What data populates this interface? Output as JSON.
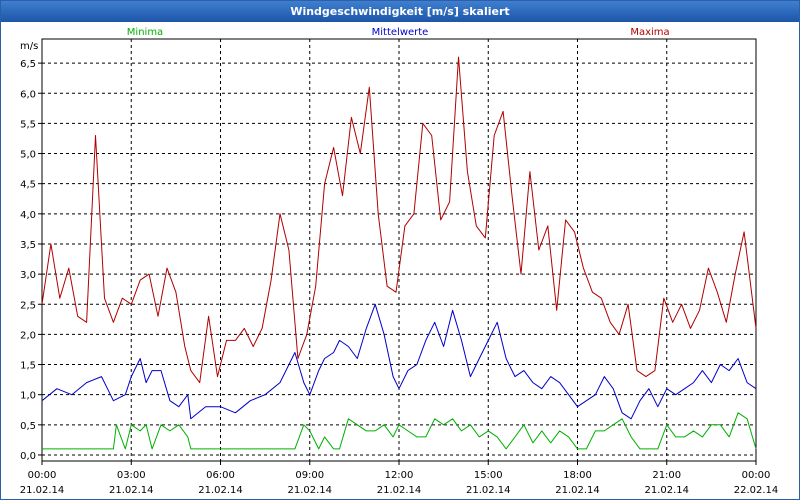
{
  "window": {
    "title": "Windgeschwindigkeit [m/s] skaliert"
  },
  "chart_data": {
    "type": "line",
    "title": "Windgeschwindigkeit [m/s] skaliert",
    "ylabel": "m/s",
    "ylim": [
      -0.1,
      6.9
    ],
    "yticks": [
      "0,0",
      "0,5",
      "1,0",
      "1,5",
      "2,0",
      "2,5",
      "3,0",
      "3,5",
      "4,0",
      "4,5",
      "5,0",
      "5,5",
      "6,0",
      "6,5"
    ],
    "xlim": [
      0,
      24
    ],
    "xticks": [
      {
        "time": "00:00",
        "date": "21.02.14"
      },
      {
        "time": "03:00",
        "date": "21.02.14"
      },
      {
        "time": "06:00",
        "date": "21.02.14"
      },
      {
        "time": "09:00",
        "date": "21.02.14"
      },
      {
        "time": "12:00",
        "date": "21.02.14"
      },
      {
        "time": "15:00",
        "date": "21.02.14"
      },
      {
        "time": "18:00",
        "date": "21.02.14"
      },
      {
        "time": "21:00",
        "date": "21.02.14"
      },
      {
        "time": "00:00",
        "date": "22.02.14"
      }
    ],
    "grid": true,
    "legend_position": "top",
    "series": [
      {
        "name": "Minima",
        "color": "#00b000",
        "x": [
          0,
          0.5,
          1,
          1.5,
          2,
          2.4,
          2.5,
          2.8,
          3,
          3.3,
          3.5,
          3.7,
          4,
          4.3,
          4.6,
          4.9,
          5,
          5.5,
          6,
          6.5,
          7,
          7.5,
          8,
          8.5,
          8.8,
          9,
          9.3,
          9.5,
          9.8,
          10,
          10.3,
          10.6,
          10.9,
          11.2,
          11.5,
          11.8,
          12,
          12.3,
          12.6,
          12.9,
          13.2,
          13.5,
          13.8,
          14.1,
          14.4,
          14.7,
          15,
          15.3,
          15.6,
          15.9,
          16.2,
          16.5,
          16.8,
          17.1,
          17.4,
          17.7,
          18,
          18.3,
          18.6,
          18.9,
          19.2,
          19.5,
          19.8,
          20.1,
          20.4,
          20.7,
          21,
          21.3,
          21.6,
          21.9,
          22.2,
          22.5,
          22.8,
          23.1,
          23.4,
          23.7,
          24
        ],
        "y": [
          0.1,
          0.1,
          0.1,
          0.1,
          0.1,
          0.1,
          0.5,
          0.1,
          0.5,
          0.4,
          0.5,
          0.1,
          0.5,
          0.4,
          0.5,
          0.3,
          0.1,
          0.1,
          0.1,
          0.1,
          0.1,
          0.1,
          0.1,
          0.1,
          0.5,
          0.4,
          0.1,
          0.3,
          0.1,
          0.1,
          0.6,
          0.5,
          0.4,
          0.4,
          0.5,
          0.3,
          0.5,
          0.4,
          0.3,
          0.3,
          0.6,
          0.5,
          0.6,
          0.4,
          0.5,
          0.3,
          0.4,
          0.3,
          0.1,
          0.3,
          0.5,
          0.2,
          0.4,
          0.2,
          0.4,
          0.3,
          0.1,
          0.1,
          0.4,
          0.4,
          0.5,
          0.6,
          0.3,
          0.1,
          0.1,
          0.1,
          0.5,
          0.3,
          0.3,
          0.4,
          0.3,
          0.5,
          0.5,
          0.3,
          0.7,
          0.6,
          0.1
        ]
      },
      {
        "name": "Mittelwerte",
        "color": "#0000cc",
        "x": [
          0,
          0.5,
          1,
          1.5,
          2,
          2.4,
          2.8,
          3,
          3.3,
          3.5,
          3.7,
          4,
          4.3,
          4.6,
          4.9,
          5,
          5.5,
          6,
          6.5,
          7,
          7.5,
          8,
          8.5,
          8.8,
          9,
          9.3,
          9.5,
          9.8,
          10,
          10.3,
          10.6,
          10.9,
          11.2,
          11.5,
          11.8,
          12,
          12.3,
          12.6,
          12.9,
          13.2,
          13.5,
          13.8,
          14.1,
          14.4,
          14.7,
          15,
          15.3,
          15.6,
          15.9,
          16.2,
          16.5,
          16.8,
          17.1,
          17.4,
          17.7,
          18,
          18.3,
          18.6,
          18.9,
          19.2,
          19.5,
          19.8,
          20.1,
          20.4,
          20.7,
          21,
          21.3,
          21.6,
          21.9,
          22.2,
          22.5,
          22.8,
          23.1,
          23.4,
          23.7,
          24
        ],
        "y": [
          0.9,
          1.1,
          1.0,
          1.2,
          1.3,
          0.9,
          1.0,
          1.3,
          1.6,
          1.2,
          1.4,
          1.4,
          0.9,
          0.8,
          1.0,
          0.6,
          0.8,
          0.8,
          0.7,
          0.9,
          1.0,
          1.2,
          1.7,
          1.2,
          1.0,
          1.4,
          1.6,
          1.7,
          1.9,
          1.8,
          1.6,
          2.1,
          2.5,
          2.0,
          1.3,
          1.1,
          1.4,
          1.5,
          1.9,
          2.2,
          1.8,
          2.4,
          1.9,
          1.3,
          1.6,
          1.9,
          2.2,
          1.6,
          1.3,
          1.4,
          1.2,
          1.1,
          1.3,
          1.2,
          1.0,
          0.8,
          0.9,
          1.0,
          1.3,
          1.1,
          0.7,
          0.6,
          0.9,
          1.1,
          0.8,
          1.1,
          1.0,
          1.1,
          1.2,
          1.4,
          1.2,
          1.5,
          1.4,
          1.6,
          1.2,
          1.1
        ]
      },
      {
        "name": "Maxima",
        "color": "#b00000",
        "x": [
          0,
          0.3,
          0.6,
          0.9,
          1.2,
          1.5,
          1.8,
          2.1,
          2.4,
          2.7,
          3,
          3.3,
          3.6,
          3.9,
          4.2,
          4.5,
          4.8,
          5,
          5.3,
          5.6,
          5.9,
          6.2,
          6.5,
          6.8,
          7.1,
          7.4,
          7.7,
          8,
          8.3,
          8.6,
          8.9,
          9.2,
          9.5,
          9.8,
          10.1,
          10.4,
          10.7,
          11,
          11.3,
          11.6,
          11.9,
          12.2,
          12.5,
          12.8,
          13.1,
          13.4,
          13.7,
          14,
          14.3,
          14.6,
          14.9,
          15.2,
          15.5,
          15.8,
          16.1,
          16.4,
          16.7,
          17,
          17.3,
          17.6,
          17.9,
          18.2,
          18.5,
          18.8,
          19.1,
          19.4,
          19.7,
          20,
          20.3,
          20.6,
          20.9,
          21.2,
          21.5,
          21.8,
          22.1,
          22.4,
          22.7,
          23,
          23.3,
          23.6,
          24
        ],
        "y": [
          2.5,
          3.5,
          2.6,
          3.1,
          2.3,
          2.2,
          5.3,
          2.6,
          2.2,
          2.6,
          2.5,
          2.9,
          3.0,
          2.3,
          3.1,
          2.7,
          1.8,
          1.4,
          1.2,
          2.3,
          1.3,
          1.9,
          1.9,
          2.1,
          1.8,
          2.1,
          2.9,
          4.0,
          3.4,
          1.6,
          2.0,
          2.8,
          4.5,
          5.1,
          4.3,
          5.6,
          5.0,
          6.1,
          4.0,
          2.8,
          2.7,
          3.8,
          4.0,
          5.5,
          5.3,
          3.9,
          4.2,
          6.6,
          4.7,
          3.8,
          3.6,
          5.3,
          5.7,
          4.3,
          3.0,
          4.7,
          3.4,
          3.8,
          2.4,
          3.9,
          3.7,
          3.1,
          2.7,
          2.6,
          2.2,
          2.0,
          2.5,
          1.4,
          1.3,
          1.4,
          2.6,
          2.2,
          2.5,
          2.1,
          2.4,
          3.1,
          2.7,
          2.2,
          3.0,
          3.7,
          2.1
        ]
      }
    ]
  }
}
